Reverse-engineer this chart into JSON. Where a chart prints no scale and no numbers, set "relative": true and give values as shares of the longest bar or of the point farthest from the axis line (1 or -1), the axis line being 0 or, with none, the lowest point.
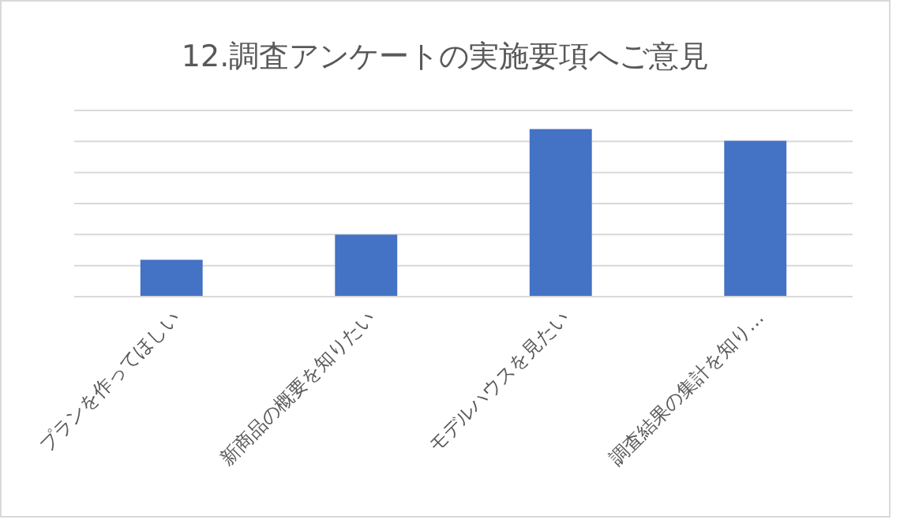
{
  "chart_data": {
    "type": "bar",
    "title": "12.調査アンケートの実施要項へご意見",
    "categories": [
      "プランを作ってほしい",
      "新商品の概要を知りたい",
      "モデルハウスを見たい",
      "調査結果の集計を知り…"
    ],
    "values": [
      0.22,
      0.37,
      1,
      0.93
    ],
    "color": "#4472c4",
    "relative": true,
    "grid": "y"
  }
}
